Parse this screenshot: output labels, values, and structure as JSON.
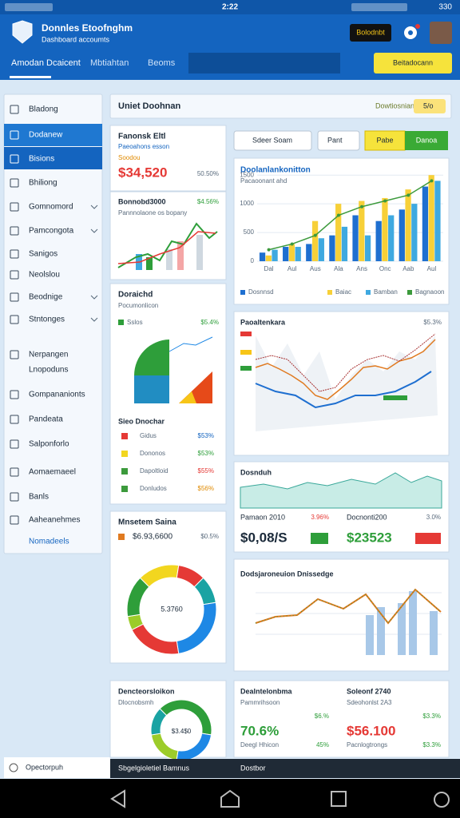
{
  "status_bar": {
    "time": "2:22",
    "battery": "330"
  },
  "header": {
    "title": "Donnles Etoofnghm",
    "subtitle": "Dashboard accoumts",
    "button": "Bolodnbt",
    "tabs": [
      "Amodan Dcaicent",
      "Mbtiahtan",
      "Beoms"
    ],
    "action": "Beitadocann"
  },
  "sidebar": {
    "items": [
      "Bladong",
      "Dodanew",
      "Bisions",
      "Bhiliong",
      "Gomnomord",
      "Pamcongota",
      "Sanigos",
      "Neolslou",
      "Beodnige",
      "Stntonges",
      "Nerpangen",
      "Lnopoduns",
      "Gompananionts",
      "Pandeata",
      "Salponforlo",
      "Aomaemaeel",
      "Banls",
      "Aaheanehmes"
    ],
    "link": "Nomadeels",
    "footer": "Opectorpuh"
  },
  "toolbar": {
    "title": "Uniet Doohnan",
    "label": "Dowtiosnian",
    "badge": "5/o"
  },
  "filters": {
    "search": "Sdeer Soam",
    "dropdown": "Pant",
    "buttons": [
      "Pabe",
      "Danoa"
    ]
  },
  "card_summary": {
    "title": "Fanonsk Eltl",
    "subtitle": "Paeoahons esson",
    "tag": "Soodou",
    "value": "$34,520",
    "change": "50.50%"
  },
  "card_trend": {
    "title": "Bonnobd3000",
    "change": "$4.56%",
    "subtitle": "Pannnolaone os bopany"
  },
  "bar_chart": {
    "title": "Doolanlankonitton",
    "subtitle": "Pacaoonant ahd",
    "categories": [
      "Dal",
      "Aul",
      "Aus",
      "Ala",
      "Ans",
      "Onc",
      "Aab",
      "Aul"
    ],
    "ylim": [
      0,
      1600
    ],
    "yticks": [
      0,
      500,
      1000,
      1500
    ],
    "series": [
      {
        "name": "Dosnnsd",
        "color": "#1e6fd0",
        "values": [
          150,
          250,
          300,
          450,
          800,
          700,
          900,
          1300
        ]
      },
      {
        "name": "Baiac",
        "color": "#f7d038",
        "values": [
          100,
          300,
          700,
          1000,
          1050,
          1100,
          1250,
          1500
        ]
      },
      {
        "name": "Bamban",
        "color": "#3fa9e0",
        "values": [
          200,
          250,
          400,
          600,
          450,
          800,
          1000,
          1400
        ]
      },
      {
        "name": "Bagnaoon",
        "color": "#3c9a3c",
        "kind": "line",
        "values": [
          200,
          300,
          450,
          800,
          950,
          1050,
          1150,
          1400
        ]
      }
    ]
  },
  "card_split": {
    "title": "Doraichd",
    "subtitle": "Pocumonlicon",
    "legend": "Sslos",
    "change": "$5.4%",
    "list_title": "Sieo Dnochar",
    "rows": [
      [
        "Gidus",
        "$53%"
      ],
      [
        "Dononos",
        "$53%"
      ],
      [
        "Dapoltloid",
        "$55%"
      ],
      [
        "Donludos",
        "$56%"
      ]
    ]
  },
  "card_market": {
    "title": "Paoaltenkara",
    "change": "$5.3%"
  },
  "card_area": {
    "title": "Dosnduh",
    "left_label": "Pamaon 2010",
    "left_change": "3.96%",
    "right_label": "Docnonti200",
    "right_change": "3.0%",
    "left_value": "$0,08/S",
    "right_value": "$23523"
  },
  "donut": {
    "title": "Mnsetem Saina",
    "value": "$6.93,6600",
    "change": "$0.5%",
    "center_label": "5.3760",
    "values": [
      15,
      10,
      10,
      25,
      20,
      5,
      15
    ],
    "colors": [
      "#f2d61f",
      "#e53935",
      "#1aa3a3",
      "#1e88e5",
      "#e53935",
      "#9ccc2a",
      "#2e9e3a"
    ]
  },
  "card_lines": {
    "title": "Dodsjaroneuion Dnissedge"
  },
  "small_donut": {
    "title": "Dencteorsloikon",
    "subtitle": "Dlocnobsmh",
    "center_label": "$3.4$0",
    "values": [
      40,
      25,
      20,
      15
    ],
    "colors": [
      "#2e9e3a",
      "#1e88e5",
      "#9ccc2a",
      "#1aa3a3"
    ]
  },
  "card_stats": {
    "title": "Dealntelonbma",
    "left_sub": "Pammrihsoon",
    "left_sub_change": "$6.%",
    "left_value": "70.6%",
    "left_row": "Deegl Hhicon",
    "left_row_change": "45%",
    "right_title": "Soleonf 2740",
    "right_sub": "Sdeohonlst 2A3",
    "right_sub_change": "$3.3%",
    "right_value": "$56.100",
    "right_row": "Pacnlogtrongs",
    "right_row_change": "$3.3%"
  },
  "bottom_bar": {
    "left": "Sbgelgioletiel Bamnus",
    "right": "Dostbor"
  }
}
